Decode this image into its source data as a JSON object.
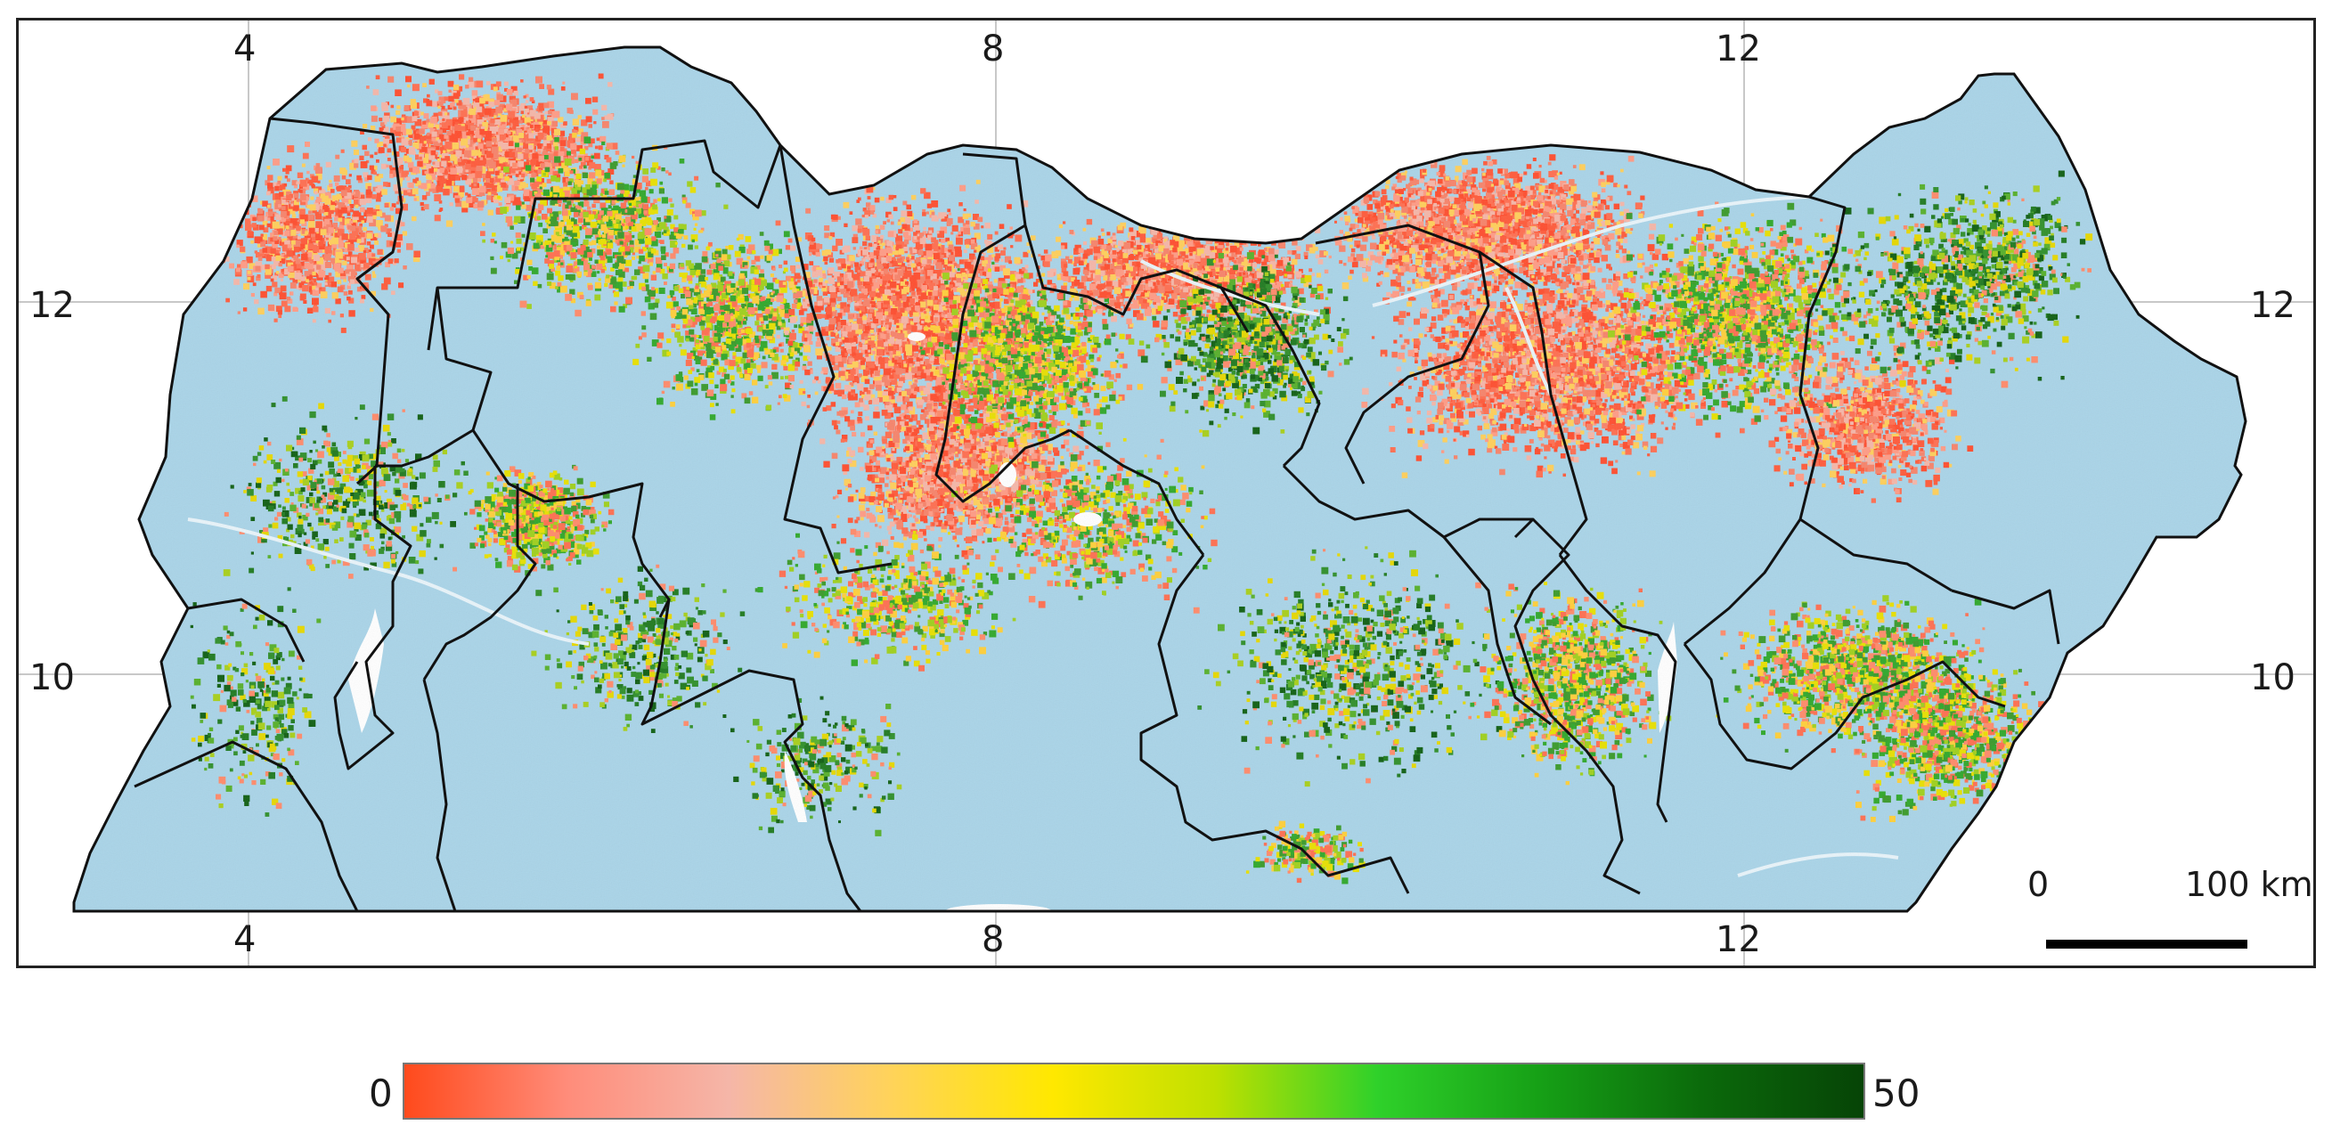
{
  "map": {
    "axis_labels": {
      "top": [
        "4",
        "8",
        "12"
      ],
      "bottom": [
        "4",
        "8",
        "12"
      ],
      "left": [
        "12",
        "10"
      ],
      "right": [
        "12",
        "10"
      ]
    },
    "colors": {
      "background": "#a9d4e8",
      "low": "#ff5a3a",
      "mid": "#ffe600",
      "high": "#0a5a0a",
      "boundary": "#111111",
      "water": "#ffffff"
    }
  },
  "scale_bar": {
    "start_label": "0",
    "end_label": "100 km"
  },
  "legend": {
    "min_label": "0",
    "max_label": "50",
    "gradient": [
      "#ff4a1c",
      "#ff8c7a",
      "#f5b6a8",
      "#ffd35a",
      "#ffe800",
      "#bfe000",
      "#2fd12a",
      "#16a016",
      "#0b6a0b",
      "#064406"
    ]
  }
}
